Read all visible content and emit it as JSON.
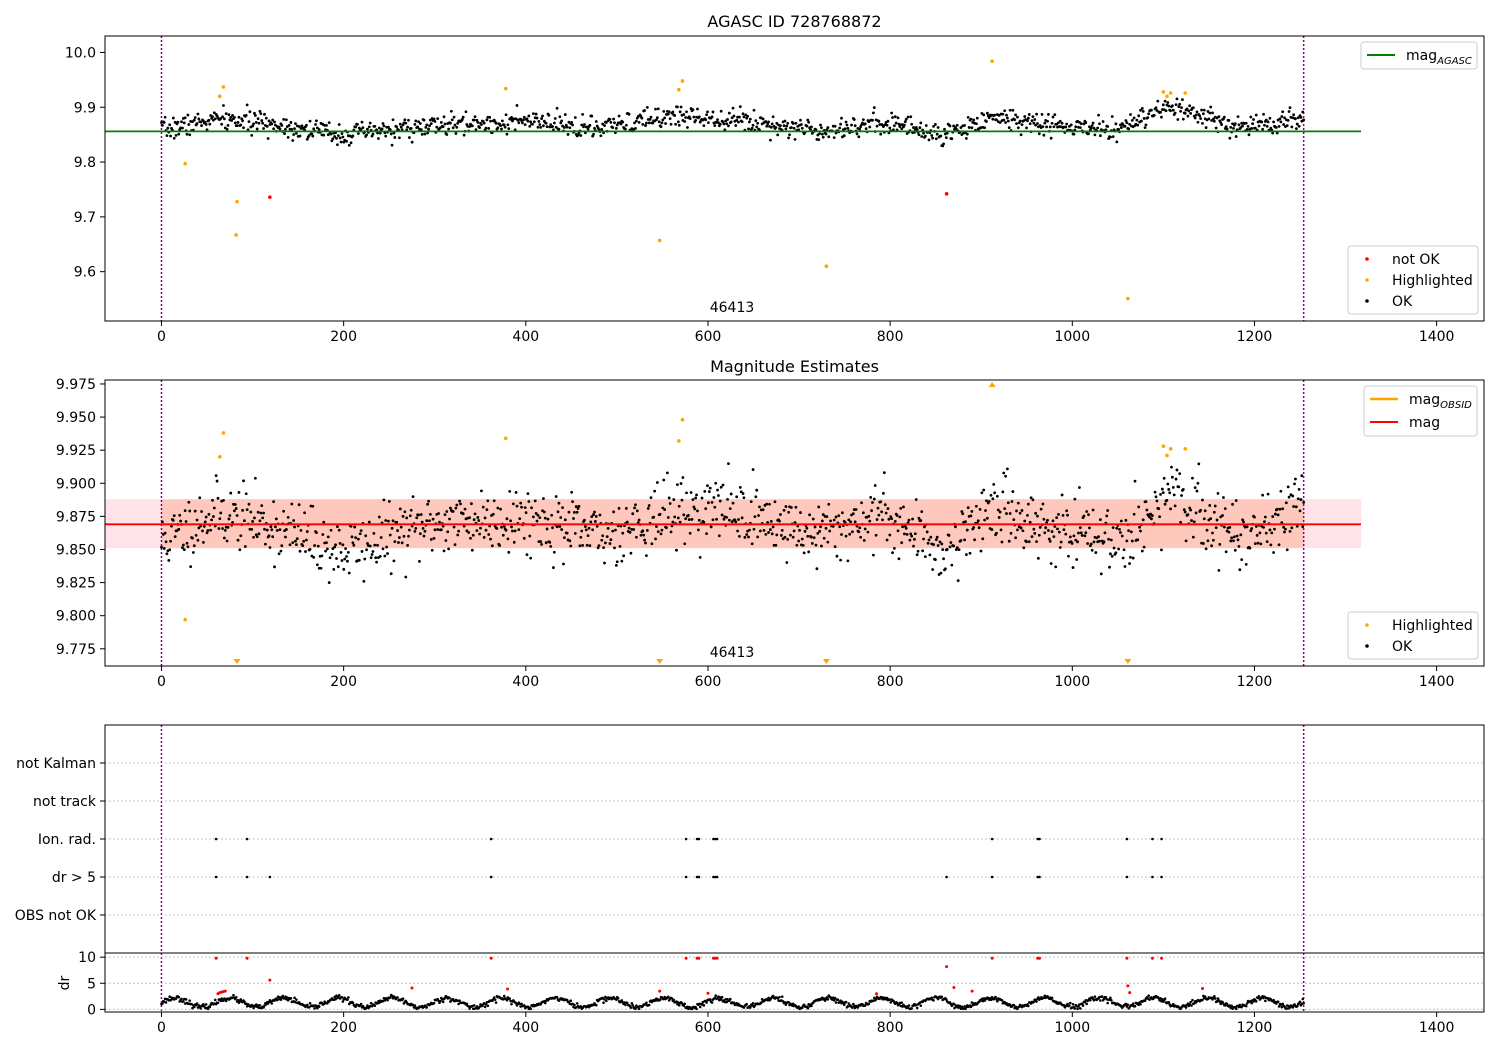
{
  "chart_data": [
    {
      "type": "scatter",
      "panel": "agasc",
      "title": "AGASC ID 728768872",
      "annotation": "46413",
      "xlim": [
        -62,
        1452
      ],
      "ylim": [
        9.51,
        10.03
      ],
      "xticks": [
        "0",
        "200",
        "400",
        "600",
        "800",
        "1000",
        "1200",
        "1400"
      ],
      "yticks": [
        "9.6",
        "9.7",
        "9.8",
        "9.9",
        "10.0"
      ],
      "vlines": [
        0,
        1254
      ],
      "colors": {
        "ok": "#000000",
        "highlighted": "#ffa500",
        "not_ok": "#ff0000",
        "mag_line": "#008000",
        "vline": "#800080"
      },
      "mag_agasc": 9.856,
      "mag_line_x": [
        -62,
        1317
      ],
      "legend_lines": [
        {
          "label_base": "mag",
          "label_sub": "AGASC"
        }
      ],
      "legend_points": [
        "not OK",
        "Highlighted",
        "OK"
      ],
      "ok_series": {
        "name": "OK",
        "n": 1254,
        "x_range": [
          0,
          1254
        ],
        "anchors": [
          [
            0,
            9.858
          ],
          [
            60,
            9.878
          ],
          [
            110,
            9.872
          ],
          [
            200,
            9.85
          ],
          [
            300,
            9.866
          ],
          [
            400,
            9.874
          ],
          [
            480,
            9.86
          ],
          [
            560,
            9.885
          ],
          [
            620,
            9.88
          ],
          [
            720,
            9.858
          ],
          [
            800,
            9.872
          ],
          [
            860,
            9.848
          ],
          [
            910,
            9.883
          ],
          [
            1000,
            9.862
          ],
          [
            1050,
            9.86
          ],
          [
            1110,
            9.9
          ],
          [
            1180,
            9.862
          ],
          [
            1254,
            9.882
          ]
        ],
        "scatter_sd": 0.013
      },
      "highlighted": {
        "name": "Highlighted",
        "points": [
          [
            26,
            9.797
          ],
          [
            64,
            9.92
          ],
          [
            68,
            9.937
          ],
          [
            82,
            9.667
          ],
          [
            83,
            9.728
          ],
          [
            378,
            9.934
          ],
          [
            547,
            9.657
          ],
          [
            568,
            9.932
          ],
          [
            572,
            9.948
          ],
          [
            730,
            9.61
          ],
          [
            912,
            9.984
          ],
          [
            1061,
            9.551
          ],
          [
            1100,
            9.928
          ],
          [
            1104,
            9.92
          ],
          [
            1108,
            9.926
          ],
          [
            1124,
            9.926
          ]
        ]
      },
      "not_ok": {
        "name": "not OK",
        "points": [
          [
            119,
            9.736
          ],
          [
            862,
            9.742
          ]
        ]
      }
    },
    {
      "type": "scatter",
      "panel": "estimates",
      "title": "Magnitude Estimates",
      "annotation": "46413",
      "xlim": [
        -62,
        1452
      ],
      "ylim": [
        9.762,
        9.978
      ],
      "xticks": [
        "0",
        "200",
        "400",
        "600",
        "800",
        "1000",
        "1200",
        "1400"
      ],
      "yticks": [
        "9.775",
        "9.800",
        "9.825",
        "9.850",
        "9.875",
        "9.900",
        "9.925",
        "9.950",
        "9.975"
      ],
      "vlines": [
        0,
        1254
      ],
      "colors": {
        "ok": "#000000",
        "highlighted": "#ffa500",
        "mag_line": "#ff0000",
        "mag_obsid": "#ffa500",
        "band": "#ffc0cb",
        "obsid_band": "#ffa07a",
        "vline": "#800080"
      },
      "mag": 9.869,
      "mag_band": [
        9.851,
        9.888
      ],
      "mag_line_x": [
        -62,
        1317
      ],
      "obsid_band_x": [
        0,
        1254
      ],
      "mag_obsid": 9.869,
      "legend_lines": [
        {
          "label_base": "mag",
          "label_sub": "OBSID"
        },
        {
          "label_base": "mag",
          "label_sub": ""
        }
      ],
      "legend_points": [
        "Highlighted",
        "OK"
      ],
      "ok_series": {
        "name": "OK",
        "n": 1254,
        "x_range": [
          0,
          1254
        ],
        "anchors": [
          [
            0,
            9.855
          ],
          [
            60,
            9.878
          ],
          [
            110,
            9.87
          ],
          [
            200,
            9.848
          ],
          [
            300,
            9.87
          ],
          [
            400,
            9.874
          ],
          [
            480,
            9.86
          ],
          [
            560,
            9.878
          ],
          [
            620,
            9.882
          ],
          [
            720,
            9.86
          ],
          [
            790,
            9.878
          ],
          [
            860,
            9.848
          ],
          [
            910,
            9.882
          ],
          [
            1000,
            9.86
          ],
          [
            1050,
            9.858
          ],
          [
            1110,
            9.89
          ],
          [
            1180,
            9.86
          ],
          [
            1254,
            9.882
          ]
        ],
        "scatter_sd": 0.016
      },
      "highlighted": {
        "name": "Highlighted",
        "points": [
          [
            26,
            9.797
          ],
          [
            64,
            9.92
          ],
          [
            68,
            9.938
          ],
          [
            378,
            9.934
          ],
          [
            568,
            9.932
          ],
          [
            572,
            9.948
          ],
          [
            1100,
            9.928
          ],
          [
            1104,
            9.921
          ],
          [
            1108,
            9.926
          ],
          [
            1124,
            9.926
          ]
        ]
      },
      "clipped_low": [
        83,
        547,
        730,
        1061
      ],
      "clipped_high": [
        912
      ]
    },
    {
      "type": "scatter",
      "panel": "flags",
      "xlim": [
        -62,
        1452
      ],
      "categories": [
        "not Kalman",
        "not track",
        "Ion. rad.",
        "dr > 5",
        "OBS not OK"
      ],
      "vlines": [
        0,
        1254
      ],
      "colors": {
        "points": "#000000",
        "grid": "#b0b0b0",
        "vline": "#800080"
      },
      "ion_rad_x": [
        60,
        94,
        362,
        576,
        588,
        590,
        606,
        608,
        610,
        912,
        962,
        964,
        1060,
        1088,
        1098
      ],
      "dr5_x": [
        60,
        94,
        119,
        362,
        576,
        588,
        590,
        606,
        608,
        610,
        862,
        912,
        962,
        964,
        1060,
        1088,
        1098
      ]
    },
    {
      "type": "scatter",
      "panel": "dr",
      "ylabel": "dr",
      "xlim": [
        -62,
        1452
      ],
      "ylim": [
        -0.5,
        10.8
      ],
      "xticks": [
        "0",
        "200",
        "400",
        "600",
        "800",
        "1000",
        "1200",
        "1400"
      ],
      "yticks": [
        "0",
        "5",
        "10"
      ],
      "vlines": [
        0,
        1254
      ],
      "colors": {
        "ok": "#000000",
        "high": "#ff0000",
        "vline": "#800080"
      },
      "ok_series": {
        "n": 1254,
        "x_range": [
          0,
          1254
        ],
        "baseline": 1.3,
        "amplitude": 0.9
      },
      "red_points": [
        [
          60,
          9.8
        ],
        [
          62,
          3.0
        ],
        [
          64,
          3.2
        ],
        [
          66,
          3.3
        ],
        [
          68,
          3.4
        ],
        [
          70,
          3.5
        ],
        [
          94,
          9.8
        ],
        [
          119,
          5.6
        ],
        [
          275,
          4.1
        ],
        [
          362,
          9.8
        ],
        [
          380,
          3.9
        ],
        [
          547,
          3.5
        ],
        [
          576,
          9.8
        ],
        [
          588,
          9.8
        ],
        [
          590,
          9.8
        ],
        [
          600,
          3.1
        ],
        [
          606,
          9.8
        ],
        [
          608,
          9.8
        ],
        [
          610,
          9.8
        ],
        [
          785,
          3.0
        ],
        [
          862,
          8.2
        ],
        [
          870,
          4.2
        ],
        [
          890,
          3.5
        ],
        [
          912,
          9.8
        ],
        [
          962,
          9.8
        ],
        [
          964,
          9.8
        ],
        [
          1060,
          9.8
        ],
        [
          1061,
          4.5
        ],
        [
          1063,
          3.2
        ],
        [
          1088,
          9.8
        ],
        [
          1098,
          9.8
        ],
        [
          1143,
          4.0
        ]
      ]
    }
  ]
}
